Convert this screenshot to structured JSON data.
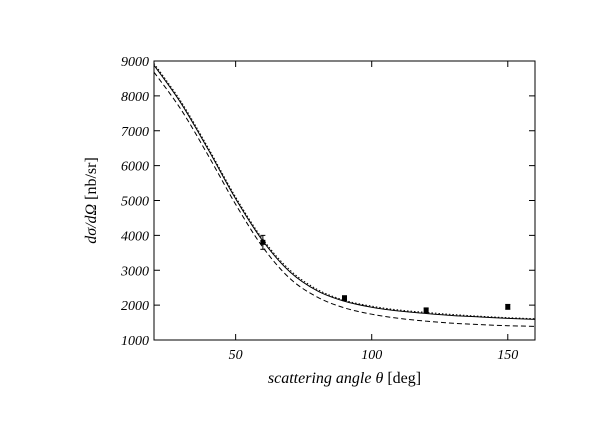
{
  "chart_data": {
    "type": "line",
    "xlabel": {
      "text": "scattering angle",
      "symbol": "θ",
      "unit": "[deg]"
    },
    "ylabel": {
      "text": "dσ/dΩ",
      "unit": "[nb/sr]"
    },
    "xlim": [
      20,
      160
    ],
    "ylim": [
      1000,
      9000
    ],
    "x_ticks": [
      50,
      100,
      150
    ],
    "y_ticks": [
      1000,
      2000,
      3000,
      4000,
      5000,
      6000,
      7000,
      8000,
      9000
    ],
    "grid": false,
    "legend": "none",
    "series": [
      {
        "style": "solid",
        "x": [
          20,
          30,
          40,
          50,
          60,
          70,
          80,
          90,
          100,
          110,
          120,
          130,
          140,
          150,
          160
        ],
        "y": [
          8880,
          7780,
          6450,
          5050,
          3840,
          2950,
          2410,
          2110,
          1940,
          1830,
          1760,
          1700,
          1660,
          1620,
          1590
        ]
      },
      {
        "style": "dotted",
        "x": [
          20,
          30,
          40,
          50,
          60,
          70,
          80,
          90,
          100,
          110,
          120,
          130,
          140,
          150,
          160
        ],
        "y": [
          8930,
          7830,
          6500,
          5100,
          3890,
          3000,
          2450,
          2140,
          1970,
          1860,
          1790,
          1730,
          1680,
          1640,
          1610
        ]
      },
      {
        "style": "dashed",
        "x": [
          20,
          30,
          40,
          50,
          60,
          70,
          80,
          90,
          100,
          110,
          120,
          130,
          140,
          150,
          160
        ],
        "y": [
          8680,
          7600,
          6280,
          4890,
          3660,
          2760,
          2230,
          1920,
          1740,
          1620,
          1540,
          1480,
          1440,
          1410,
          1390
        ]
      }
    ],
    "data_points": [
      {
        "x": 60,
        "y": 3800,
        "err": 200
      },
      {
        "x": 90,
        "y": 2200,
        "err": 70
      },
      {
        "x": 120,
        "y": 1850,
        "err": 70
      },
      {
        "x": 150,
        "y": 1950,
        "err": 70
      }
    ]
  }
}
